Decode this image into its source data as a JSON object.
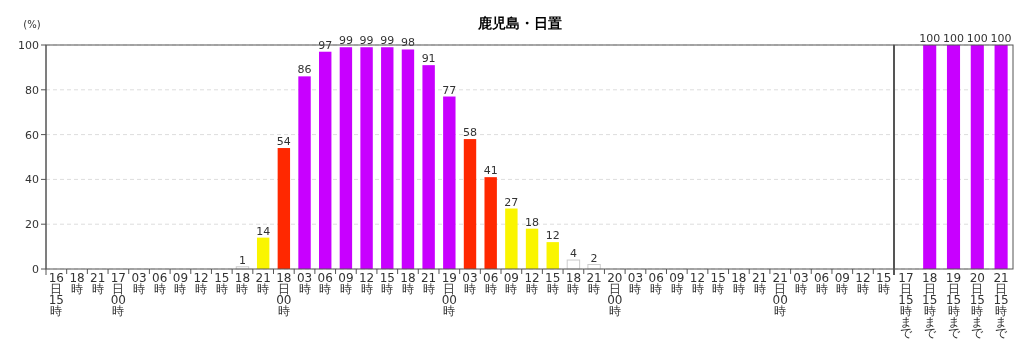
{
  "chart_data": [
    {
      "type": "bar",
      "title": "鹿児島・日置",
      "ylabel": "(%)",
      "categories": [
        "16日15時",
        "18時",
        "21時",
        "17日00時",
        "03時",
        "06時",
        "09時",
        "12時",
        "15時",
        "18時",
        "21時",
        "18日00時",
        "03時",
        "06時",
        "09時",
        "12時",
        "15時",
        "18時",
        "21時",
        "19日00時",
        "03時",
        "06時",
        "09時",
        "12時",
        "15時",
        "18時",
        "21時",
        "20日00時",
        "03時",
        "06時",
        "09時",
        "12時",
        "15時",
        "18時",
        "21時",
        "21日00時",
        "03時",
        "06時",
        "09時",
        "12時",
        "15時"
      ],
      "values": [
        0,
        0,
        0,
        0,
        0,
        0,
        0,
        0,
        0,
        1,
        14,
        54,
        86,
        97,
        99,
        99,
        99,
        98,
        91,
        77,
        58,
        41,
        27,
        18,
        12,
        4,
        2,
        0,
        0,
        0,
        0,
        0,
        0,
        0,
        0,
        0,
        0,
        0,
        0,
        0,
        null
      ],
      "value_labels": [
        null,
        null,
        null,
        null,
        null,
        null,
        null,
        null,
        null,
        "1",
        "14",
        "54",
        "86",
        "97",
        "99",
        "99",
        "99",
        "98",
        "91",
        "77",
        "58",
        "41",
        "27",
        "18",
        "12",
        "4",
        "2",
        null,
        null,
        null,
        null,
        null,
        null,
        null,
        null,
        null,
        null,
        null,
        null,
        null,
        null
      ],
      "colors": [
        "#ffffff",
        "#ffffff",
        "#ffffff",
        "#ffffff",
        "#ffffff",
        "#ffffff",
        "#ffffff",
        "#ffffff",
        "#ffffff",
        "#ffffff",
        "#faf500",
        "#ff2800",
        "#c800ff",
        "#c800ff",
        "#c800ff",
        "#c800ff",
        "#c800ff",
        "#c800ff",
        "#c800ff",
        "#c800ff",
        "#ff2800",
        "#ff2800",
        "#faf500",
        "#faf500",
        "#faf500",
        "#ffffff",
        "#ffffff",
        "#ffffff",
        "#ffffff",
        "#ffffff",
        "#ffffff",
        "#ffffff",
        "#ffffff",
        "#ffffff",
        "#ffffff",
        "#ffffff",
        "#ffffff",
        "#ffffff",
        "#ffffff",
        "#ffffff",
        null
      ],
      "ylim": [
        0,
        100
      ],
      "yticks": [
        0,
        20,
        40,
        60,
        80,
        100
      ],
      "grid": "y"
    },
    {
      "type": "bar",
      "categories": [
        "17日15時まで",
        "18日15時まで",
        "19日15時まで",
        "20日15時まで",
        "21日15時まで"
      ],
      "values": [
        0,
        100,
        100,
        100,
        100
      ],
      "value_labels": [
        null,
        "100",
        "100",
        "100",
        "100"
      ],
      "colors": [
        "#ffffff",
        "#c800ff",
        "#c800ff",
        "#c800ff",
        "#c800ff"
      ],
      "ylim": [
        0,
        100
      ],
      "yticks": [
        0,
        20,
        40,
        60,
        80,
        100
      ],
      "grid": "y",
      "tick_labels": "x"
    }
  ]
}
